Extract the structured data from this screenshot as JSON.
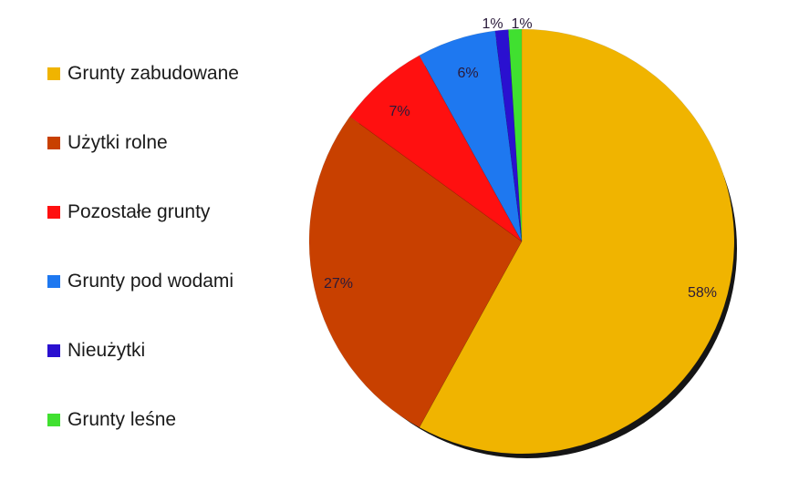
{
  "chart_data": {
    "type": "pie",
    "title": "",
    "legend_position": "left",
    "categories": [
      "Grunty zabudowane",
      "Użytki rolne",
      "Pozostałe grunty",
      "Grunty pod wodami",
      "Nieużytki",
      "Grunty leśne"
    ],
    "values": [
      58,
      27,
      7,
      6,
      1,
      1
    ],
    "labels": [
      "58%",
      "27%",
      "7%",
      "6%",
      "1%",
      "1%"
    ],
    "colors": [
      "#F0B400",
      "#C84000",
      "#FF1010",
      "#1E78F0",
      "#2A10D0",
      "#40E030"
    ]
  }
}
